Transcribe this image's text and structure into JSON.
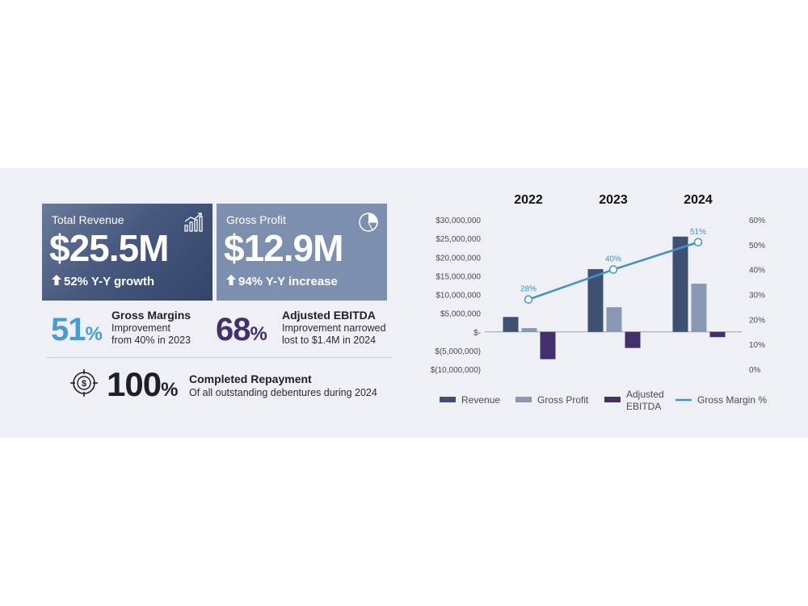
{
  "kpis": {
    "revenue": {
      "title": "Total Revenue",
      "value": "$25.5M",
      "change": "52% Y-Y growth",
      "icon": "growth-chart-icon"
    },
    "gross_profit": {
      "title": "Gross Profit",
      "value": "$12.9M",
      "change": "94% Y-Y increase",
      "icon": "pie-chart-icon"
    }
  },
  "stats": {
    "gross_margins": {
      "num": "51",
      "pct": "%",
      "head": "Gross Margins",
      "line1": "Improvement",
      "line2": "from 40% in 2023",
      "color": "#4a9bd1"
    },
    "ebitda": {
      "num": "68",
      "pct": "%",
      "head": "Adjusted EBITDA",
      "line1": "Improvement narrowed",
      "line2": "lost to $1.4M in 2024",
      "color": "#432f6e"
    },
    "repayment": {
      "num": "100",
      "pct": "%",
      "head": "Completed Repayment",
      "line1": "Of all outstanding debentures during 2024",
      "icon": "target-dollar-icon"
    }
  },
  "colors": {
    "revenue": "#3e5172",
    "gross_profit": "#8898b4",
    "ebitda": "#432f6e",
    "margin": "#3f93c5"
  },
  "chart_data": {
    "type": "bar",
    "categories": [
      "2022",
      "2023",
      "2024"
    ],
    "series": [
      {
        "name": "Revenue",
        "type": "bar",
        "values": [
          4000000,
          16800000,
          25500000
        ]
      },
      {
        "name": "Gross Profit",
        "type": "bar",
        "values": [
          1000000,
          6600000,
          12900000
        ]
      },
      {
        "name": "Adjusted EBITDA",
        "type": "bar",
        "values": [
          -7300000,
          -4300000,
          -1400000
        ]
      },
      {
        "name": "Gross Margin %",
        "type": "line",
        "axis": "right",
        "values": [
          28,
          40,
          51
        ],
        "labels": [
          "28%",
          "40%",
          "51%"
        ]
      }
    ],
    "y_left": {
      "min": -10000000,
      "max": 30000000,
      "ticks": [
        "$30,000,000",
        "$25,000,000",
        "$20,000,000",
        "$15,000,000",
        "$10,000,000",
        "$5,000,000",
        "$-",
        "$(5,000,000)",
        "$(10,000,000)"
      ]
    },
    "y_right": {
      "min": 0,
      "max": 60,
      "ticks": [
        "60%",
        "50%",
        "40%",
        "30%",
        "20%",
        "10%",
        "0%"
      ]
    },
    "legend_placement": "bottom",
    "legend": [
      "Revenue",
      "Gross Profit",
      "Adjusted EBITDA",
      "Gross Margin %"
    ],
    "grid": false
  }
}
